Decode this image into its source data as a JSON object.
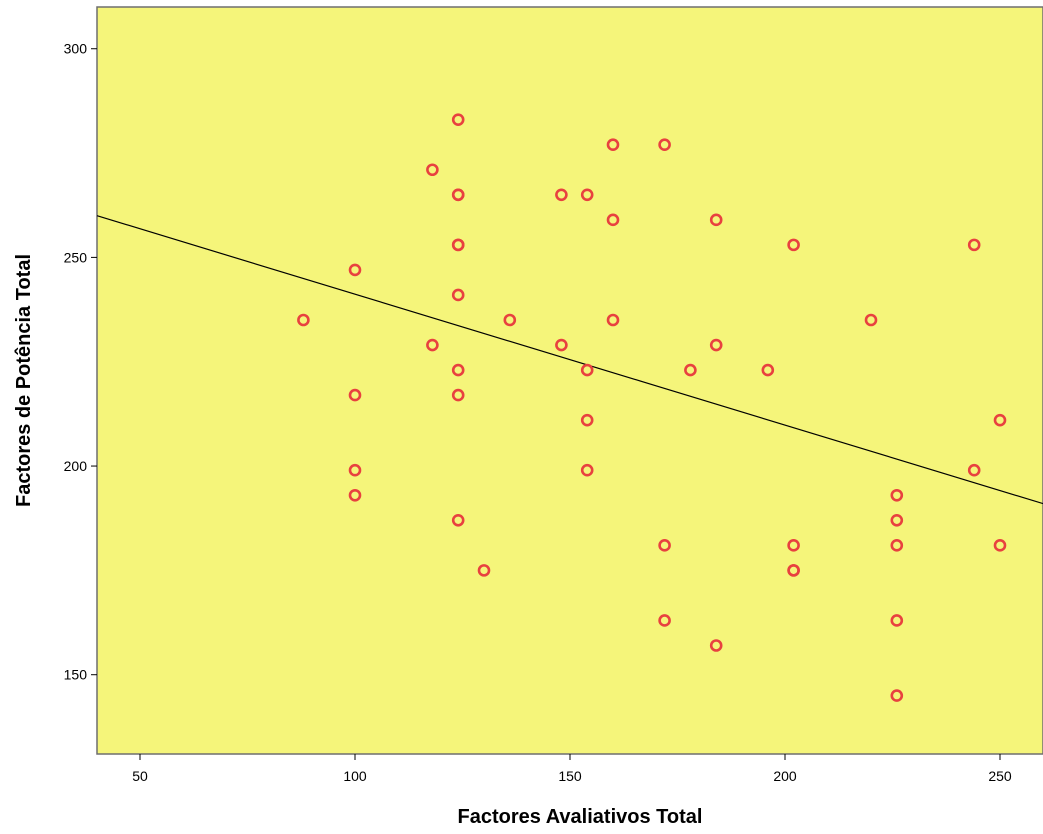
{
  "chart_data": {
    "type": "scatter",
    "title": "",
    "xlabel": "Factores Avaliativos Total",
    "ylabel": "Factores de Potência Total",
    "xlim": [
      40,
      260
    ],
    "ylim": [
      131,
      310
    ],
    "x_ticks": [
      50,
      100,
      150,
      200,
      250
    ],
    "y_ticks": [
      150,
      200,
      250,
      300
    ],
    "grid": false,
    "legend": "none",
    "colors": {
      "plot_background": "#f5f57a",
      "marker": "#e8413f",
      "fit_line": "#000000"
    },
    "fit_line": {
      "x": [
        40,
        260
      ],
      "y": [
        260,
        191
      ]
    },
    "points": [
      {
        "x": 88,
        "y": 235
      },
      {
        "x": 100,
        "y": 247
      },
      {
        "x": 100,
        "y": 217
      },
      {
        "x": 100,
        "y": 199
      },
      {
        "x": 100,
        "y": 193
      },
      {
        "x": 118,
        "y": 271
      },
      {
        "x": 118,
        "y": 229
      },
      {
        "x": 124,
        "y": 283
      },
      {
        "x": 124,
        "y": 265
      },
      {
        "x": 124,
        "y": 265
      },
      {
        "x": 124,
        "y": 253
      },
      {
        "x": 124,
        "y": 253
      },
      {
        "x": 124,
        "y": 241
      },
      {
        "x": 124,
        "y": 223
      },
      {
        "x": 124,
        "y": 217
      },
      {
        "x": 124,
        "y": 187
      },
      {
        "x": 130,
        "y": 175
      },
      {
        "x": 136,
        "y": 235
      },
      {
        "x": 148,
        "y": 265
      },
      {
        "x": 148,
        "y": 229
      },
      {
        "x": 154,
        "y": 265
      },
      {
        "x": 154,
        "y": 223
      },
      {
        "x": 154,
        "y": 211
      },
      {
        "x": 154,
        "y": 199
      },
      {
        "x": 160,
        "y": 277
      },
      {
        "x": 160,
        "y": 259
      },
      {
        "x": 160,
        "y": 235
      },
      {
        "x": 172,
        "y": 277
      },
      {
        "x": 172,
        "y": 181
      },
      {
        "x": 172,
        "y": 163
      },
      {
        "x": 178,
        "y": 223
      },
      {
        "x": 184,
        "y": 259
      },
      {
        "x": 184,
        "y": 229
      },
      {
        "x": 184,
        "y": 157
      },
      {
        "x": 196,
        "y": 223
      },
      {
        "x": 202,
        "y": 253
      },
      {
        "x": 202,
        "y": 181
      },
      {
        "x": 202,
        "y": 175
      },
      {
        "x": 202,
        "y": 175
      },
      {
        "x": 220,
        "y": 235
      },
      {
        "x": 226,
        "y": 193
      },
      {
        "x": 226,
        "y": 187
      },
      {
        "x": 226,
        "y": 181
      },
      {
        "x": 226,
        "y": 163
      },
      {
        "x": 226,
        "y": 145
      },
      {
        "x": 244,
        "y": 253
      },
      {
        "x": 244,
        "y": 199
      },
      {
        "x": 250,
        "y": 211
      },
      {
        "x": 250,
        "y": 181
      }
    ]
  }
}
